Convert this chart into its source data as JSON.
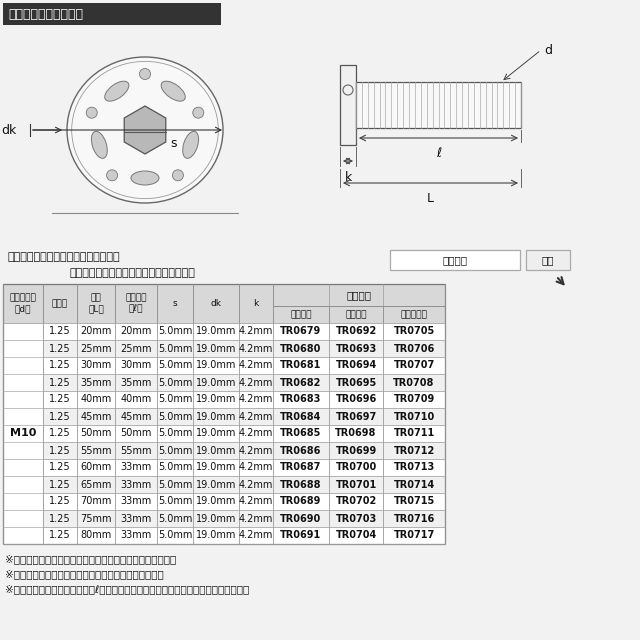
{
  "title": "ラインアップ＆サイズ",
  "title_bg": "#333333",
  "title_color": "#ffffff",
  "bg_color": "#f2f2f2",
  "search_text1": "ストア内検索に商品番号を入力すると",
  "search_text2": "お探しの商品に素早くアクセスできます。",
  "search_box_label": "商品番号",
  "search_btn_label": "検索",
  "rows": [
    [
      "M10",
      "1.25",
      "20mm",
      "20mm",
      "5.0mm",
      "19.0mm",
      "4.2mm",
      "TR0679",
      "TR0692",
      "TR0705"
    ],
    [
      "",
      "1.25",
      "25mm",
      "25mm",
      "5.0mm",
      "19.0mm",
      "4.2mm",
      "TR0680",
      "TR0693",
      "TR0706"
    ],
    [
      "",
      "1.25",
      "30mm",
      "30mm",
      "5.0mm",
      "19.0mm",
      "4.2mm",
      "TR0681",
      "TR0694",
      "TR0707"
    ],
    [
      "",
      "1.25",
      "35mm",
      "35mm",
      "5.0mm",
      "19.0mm",
      "4.2mm",
      "TR0682",
      "TR0695",
      "TR0708"
    ],
    [
      "",
      "1.25",
      "40mm",
      "40mm",
      "5.0mm",
      "19.0mm",
      "4.2mm",
      "TR0683",
      "TR0696",
      "TR0709"
    ],
    [
      "",
      "1.25",
      "45mm",
      "45mm",
      "5.0mm",
      "19.0mm",
      "4.2mm",
      "TR0684",
      "TR0697",
      "TR0710"
    ],
    [
      "",
      "1.25",
      "50mm",
      "50mm",
      "5.0mm",
      "19.0mm",
      "4.2mm",
      "TR0685",
      "TR0698",
      "TR0711"
    ],
    [
      "",
      "1.25",
      "55mm",
      "55mm",
      "5.0mm",
      "19.0mm",
      "4.2mm",
      "TR0686",
      "TR0699",
      "TR0712"
    ],
    [
      "",
      "1.25",
      "60mm",
      "33mm",
      "5.0mm",
      "19.0mm",
      "4.2mm",
      "TR0687",
      "TR0700",
      "TR0713"
    ],
    [
      "",
      "1.25",
      "65mm",
      "33mm",
      "5.0mm",
      "19.0mm",
      "4.2mm",
      "TR0688",
      "TR0701",
      "TR0714"
    ],
    [
      "",
      "1.25",
      "70mm",
      "33mm",
      "5.0mm",
      "19.0mm",
      "4.2mm",
      "TR0689",
      "TR0702",
      "TR0715"
    ],
    [
      "",
      "1.25",
      "75mm",
      "33mm",
      "5.0mm",
      "19.0mm",
      "4.2mm",
      "TR0690",
      "TR0703",
      "TR0716"
    ],
    [
      "",
      "1.25",
      "80mm",
      "33mm",
      "5.0mm",
      "19.0mm",
      "4.2mm",
      "TR0691",
      "TR0704",
      "TR0717"
    ]
  ],
  "footnotes": [
    "※記載の重量は平均値です。個体により誤差がございます。",
    "※虹色は個体差により着色が異なる場合がございます。",
    "※製造過程の都合でネジ長さ（ℓ）が変わる場合がございます。予めご了承ください。"
  ]
}
